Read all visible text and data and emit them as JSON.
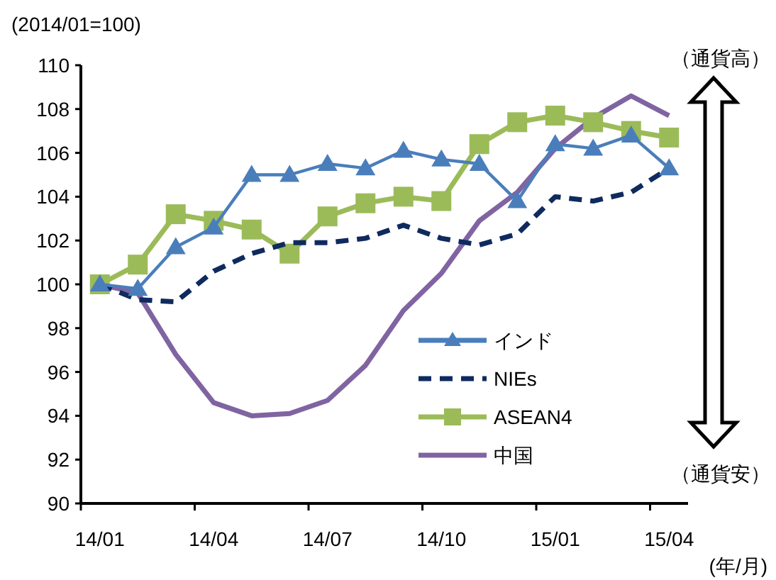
{
  "chart_data": {
    "type": "line",
    "ylabel": "(2014/01=100)",
    "xlabel": "(年/月)",
    "categories": [
      "14/01",
      null,
      null,
      "14/04",
      null,
      null,
      "14/07",
      null,
      null,
      "14/10",
      null,
      null,
      "15/01",
      null,
      null,
      "15/04"
    ],
    "series": [
      {
        "name": "インド",
        "color": "#4a7ebb",
        "marker": "triangle",
        "line_style": "solid",
        "values": [
          100,
          99.8,
          101.7,
          102.6,
          105.0,
          105.0,
          105.5,
          105.3,
          106.1,
          105.7,
          105.5,
          103.8,
          106.4,
          106.2,
          106.8,
          105.3
        ]
      },
      {
        "name": "NIEs",
        "color": "#0f2a5e",
        "marker": "none",
        "line_style": "dashed",
        "values": [
          100,
          99.3,
          99.2,
          100.6,
          101.4,
          101.9,
          101.9,
          102.1,
          102.7,
          102.1,
          101.8,
          102.3,
          104.0,
          103.8,
          104.2,
          105.3
        ]
      },
      {
        "name": "ASEAN4",
        "color": "#9bbb59",
        "marker": "square",
        "line_style": "solid",
        "values": [
          100,
          100.9,
          103.2,
          102.9,
          102.5,
          101.4,
          103.1,
          103.7,
          104.0,
          103.8,
          106.4,
          107.4,
          107.7,
          107.4,
          107.0,
          106.7
        ]
      },
      {
        "name": "中国",
        "color": "#8064a2",
        "marker": "none",
        "line_style": "solid",
        "values": [
          100,
          99.6,
          96.8,
          94.6,
          94.0,
          94.1,
          94.7,
          96.3,
          98.8,
          100.5,
          102.9,
          104.2,
          106.2,
          107.6,
          108.6,
          107.7
        ]
      }
    ],
    "ylim": [
      90,
      110
    ],
    "yticks": [
      90,
      92,
      94,
      96,
      98,
      100,
      102,
      104,
      106,
      108,
      110
    ],
    "grid": false,
    "legend": "bottom right",
    "annotations": [
      "（通貨高）",
      "（通貨安）"
    ]
  }
}
